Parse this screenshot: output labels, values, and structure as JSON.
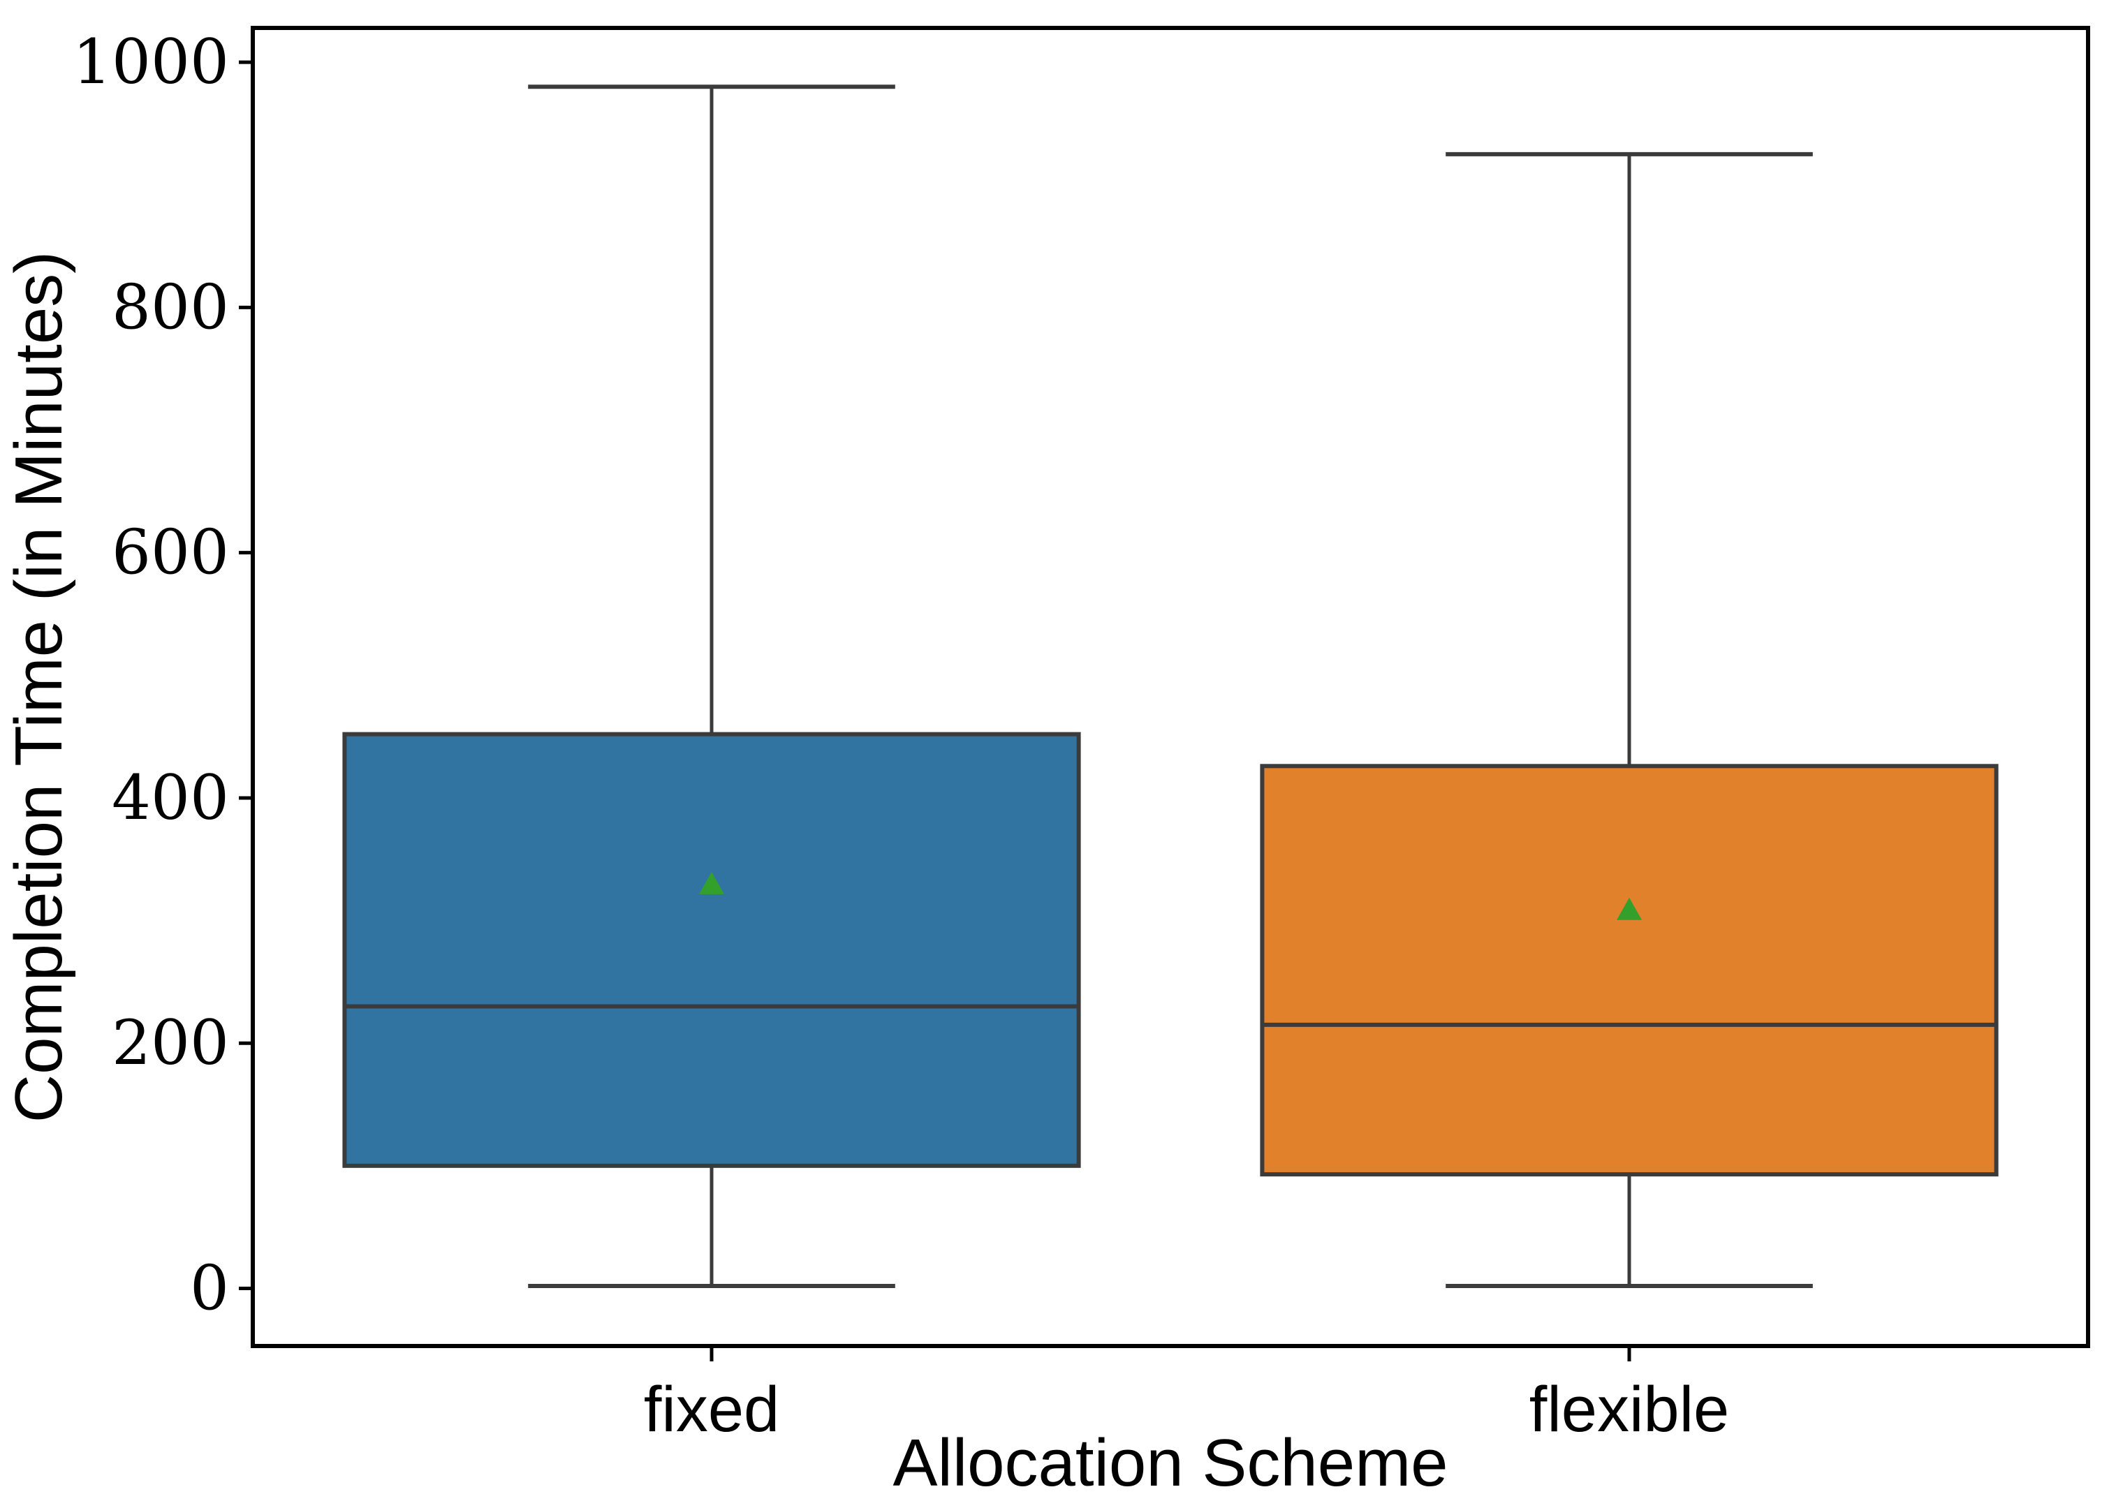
{
  "chart_data": {
    "type": "box",
    "title": "",
    "xlabel": "Allocation Scheme",
    "ylabel": "Completion Time (in Minutes)",
    "categories": [
      "fixed",
      "flexible"
    ],
    "yticks": [
      0,
      200,
      400,
      600,
      800,
      1000
    ],
    "ylim": [
      -47,
      1028
    ],
    "grid": false,
    "legend": "none",
    "series": [
      {
        "name": "fixed",
        "whisker_low": 2,
        "q1": 100,
        "median": 230,
        "q3": 452,
        "whisker_high": 980,
        "mean": 330,
        "box_color": "#3274a1"
      },
      {
        "name": "flexible",
        "whisker_low": 2,
        "q1": 93,
        "median": 215,
        "q3": 426,
        "whisker_high": 925,
        "mean": 309,
        "box_color": "#e1812c"
      }
    ],
    "mean_marker": "triangle-up",
    "mean_marker_color": "#33a02c",
    "edge_color": "#3b3b3b",
    "spine_color": "#000000",
    "background_color": "#ffffff"
  }
}
